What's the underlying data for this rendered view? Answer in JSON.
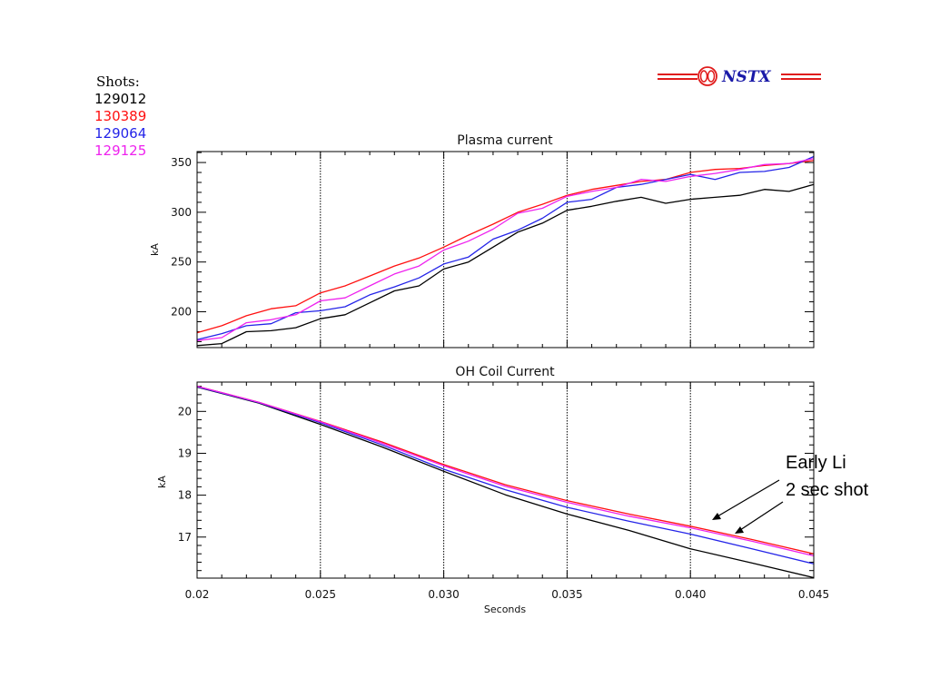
{
  "logo": {
    "text": "NSTX",
    "color": "#1a1aa8",
    "accent": "#e01b1b"
  },
  "shots_legend": {
    "title": "Shots:",
    "entries": [
      {
        "label": "129012",
        "color": "#000000"
      },
      {
        "label": "130389",
        "color": "#ff1010"
      },
      {
        "label": "129064",
        "color": "#2424e8"
      },
      {
        "label": "129125",
        "color": "#ee22ee"
      }
    ]
  },
  "annotation": {
    "line1": "Early Li",
    "line2": "2 sec shot"
  },
  "chart_data": [
    {
      "type": "line",
      "title": "Plasma current",
      "xlabel": "",
      "ylabel": "kA",
      "xlim": [
        0.02,
        0.045
      ],
      "ylim": [
        164,
        361
      ],
      "yticks": [
        200,
        250,
        300,
        350
      ],
      "ytick_labels": [
        "200",
        "250",
        "300",
        "350"
      ],
      "vlines": [
        0.025,
        0.03,
        0.035,
        0.04
      ],
      "x": [
        0.02,
        0.021,
        0.022,
        0.023,
        0.024,
        0.025,
        0.026,
        0.027,
        0.028,
        0.029,
        0.03,
        0.031,
        0.032,
        0.033,
        0.034,
        0.035,
        0.036,
        0.037,
        0.038,
        0.039,
        0.04,
        0.041,
        0.042,
        0.043,
        0.044,
        0.045
      ],
      "series": [
        {
          "name": "129012",
          "color": "#000000",
          "values": [
            166,
            168,
            180,
            181,
            184,
            193,
            197,
            209,
            221,
            226,
            243,
            250,
            265,
            280,
            289,
            302,
            306,
            311,
            315,
            309,
            313,
            315,
            317,
            323,
            321,
            328
          ]
        },
        {
          "name": "130389",
          "color": "#ff1010",
          "values": [
            179,
            186,
            196,
            203,
            206,
            219,
            226,
            236,
            246,
            254,
            265,
            277,
            288,
            300,
            308,
            317,
            323,
            327,
            331,
            333,
            340,
            343,
            344,
            347,
            349,
            352
          ]
        },
        {
          "name": "129064",
          "color": "#2424e8",
          "values": [
            172,
            178,
            186,
            188,
            199,
            201,
            205,
            217,
            225,
            234,
            248,
            255,
            273,
            282,
            294,
            310,
            313,
            325,
            328,
            333,
            338,
            333,
            340,
            341,
            345,
            356
          ]
        },
        {
          "name": "129125",
          "color": "#ee22ee",
          "values": [
            171,
            174,
            189,
            192,
            197,
            211,
            214,
            226,
            238,
            246,
            262,
            271,
            283,
            299,
            304,
            316,
            321,
            325,
            333,
            331,
            336,
            339,
            343,
            348,
            349,
            354
          ]
        }
      ]
    },
    {
      "type": "line",
      "title": "OH Coil Current",
      "xlabel": "Seconds",
      "ylabel": "kA",
      "xlim": [
        0.02,
        0.045
      ],
      "ylim": [
        16.02,
        20.7
      ],
      "yticks": [
        17,
        18,
        19,
        20
      ],
      "ytick_labels": [
        "17",
        "18",
        "19",
        "20"
      ],
      "xticks": [
        0.02,
        0.025,
        0.03,
        0.035,
        0.04,
        0.045
      ],
      "xtick_labels": [
        "0.02",
        "0.025",
        "0.030",
        "0.035",
        "0.040",
        "0.045"
      ],
      "vlines": [
        0.025,
        0.03,
        0.035,
        0.04
      ],
      "x": [
        0.02,
        0.0225,
        0.025,
        0.0275,
        0.03,
        0.0325,
        0.035,
        0.0375,
        0.04,
        0.0425,
        0.045
      ],
      "series": [
        {
          "name": "129012",
          "color": "#000000",
          "values": [
            20.58,
            20.2,
            19.69,
            19.15,
            18.57,
            18.01,
            17.55,
            17.16,
            16.72,
            16.38,
            16.03
          ]
        },
        {
          "name": "130389",
          "color": "#ff1010",
          "values": [
            20.6,
            20.22,
            19.76,
            19.27,
            18.73,
            18.25,
            17.87,
            17.55,
            17.26,
            16.94,
            16.6
          ]
        },
        {
          "name": "129064",
          "color": "#2424e8",
          "values": [
            20.59,
            20.21,
            19.73,
            19.2,
            18.62,
            18.13,
            17.71,
            17.38,
            17.07,
            16.72,
            16.36
          ]
        },
        {
          "name": "129125",
          "color": "#ee22ee",
          "values": [
            20.6,
            20.22,
            19.75,
            19.24,
            18.7,
            18.21,
            17.83,
            17.5,
            17.22,
            16.9,
            16.55
          ]
        }
      ]
    }
  ]
}
